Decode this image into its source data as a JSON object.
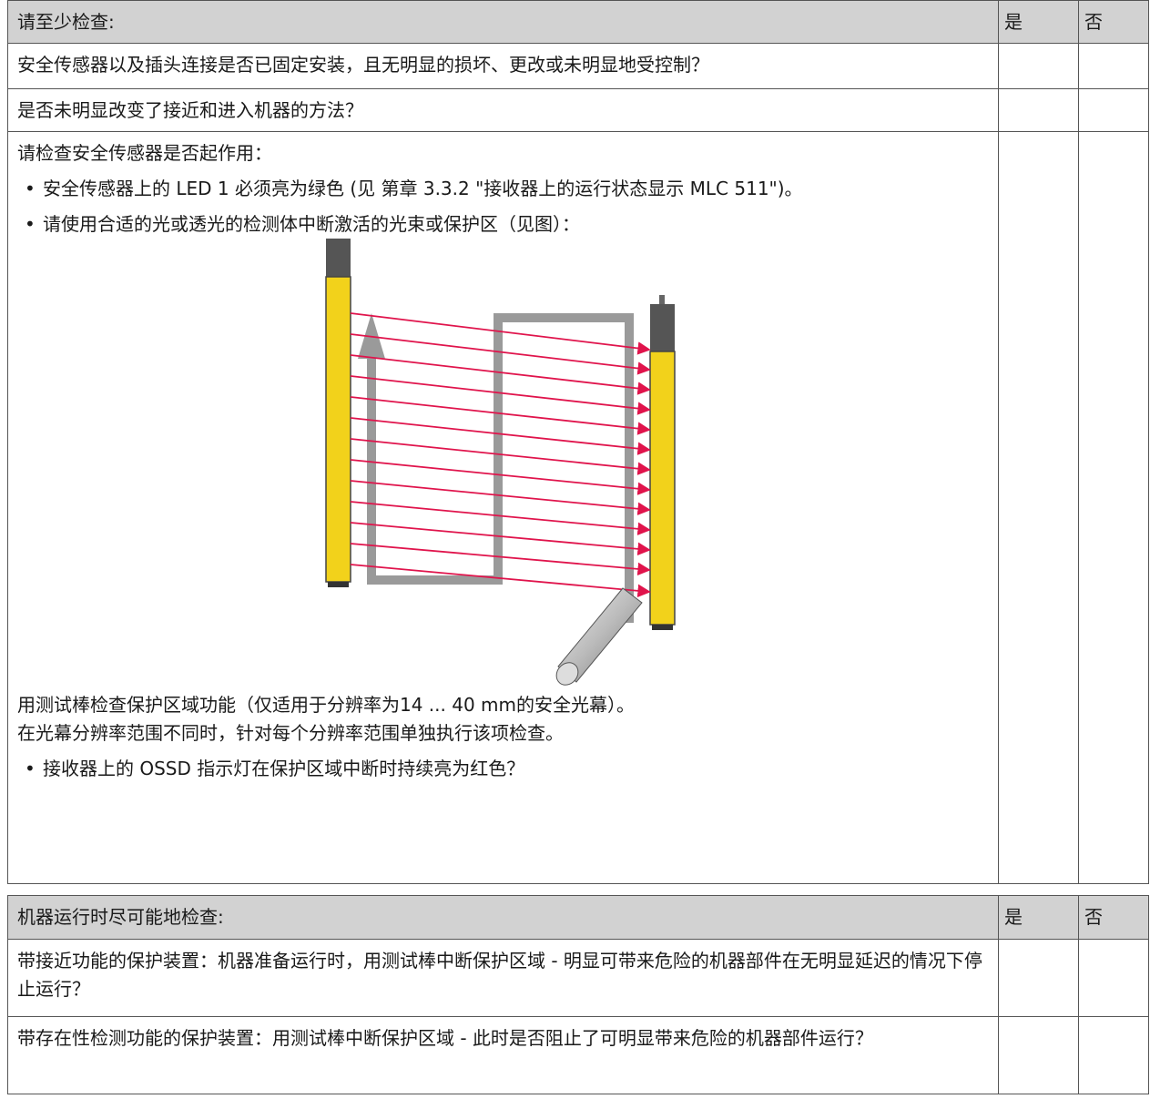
{
  "table1": {
    "header": [
      "请至少检查:",
      "是",
      "否"
    ],
    "rows": [
      "安全传感器以及插头连接是否已固定安装，且无明显的损坏、更改或未明显地受控制？",
      "是否未明显改变了接近和进入机器的方法？"
    ],
    "check": {
      "intro": "请检查安全传感器是否起作用：",
      "bullets": [
        "安全传感器上的 LED 1 必须亮为绿色 (见 第章 3.3.2 \"接收器上的运行状态显示 MLC 511\")。",
        "请使用合适的光或透光的检测体中断激活的光束或保护区（见图）："
      ],
      "notes": [
        "用测试棒检查保护区域功能（仅适用于分辨率为14 ... 40 mm的安全光幕）。",
        "在光幕分辨率范围不同时，针对每个分辨率范围单独执行该项检查。"
      ],
      "final_bullet": "接收器上的 OSSD 指示灯在保护区域中断时持续亮为红色？"
    }
  },
  "table2": {
    "header": [
      "机器运行时尽可能地检查:",
      "是",
      "否"
    ],
    "rows": [
      "带接近功能的保护装置：机器准备运行时，用测试棒中断保护区域 - 明显可带来危险的机器部件在无明显延迟的情况下停止运行？",
      "带存在性检测功能的保护装置：用测试棒中断保护区域 - 此时是否阻止了可明显带来危险的机器部件运行？"
    ]
  }
}
